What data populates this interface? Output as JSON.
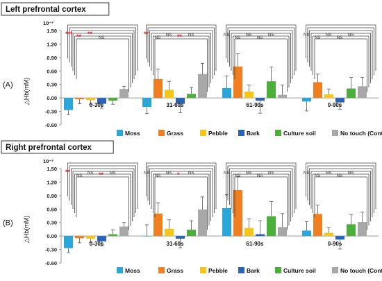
{
  "chart_data": [
    {
      "type": "bar",
      "panel_label": "(A)",
      "title": "Left prefrontal cortex",
      "ylabel": "△Hb(mM)",
      "scale_note": "10⁻³",
      "yticks": [
        "1.50",
        "1.20",
        "0.90",
        "0.60",
        "0.30",
        "0.00",
        "-0.30",
        "-0.60"
      ],
      "ylim": [
        -0.6,
        1.5
      ],
      "categories": [
        "0-30s",
        "31-60s",
        "61-90s",
        "0-90s"
      ],
      "series": [
        {
          "name": "Moss",
          "values": [
            -0.27,
            -0.2,
            0.22,
            -0.08
          ],
          "errors": [
            0.1,
            0.15,
            0.27,
            0.21
          ]
        },
        {
          "name": "Grass",
          "values": [
            -0.03,
            0.42,
            0.7,
            0.35
          ],
          "errors": [
            0.1,
            0.22,
            0.28,
            0.18
          ]
        },
        {
          "name": "Pebble",
          "values": [
            -0.05,
            0.18,
            0.14,
            0.08
          ],
          "errors": [
            0.09,
            0.19,
            0.15,
            0.12
          ]
        },
        {
          "name": "Bark",
          "values": [
            -0.13,
            -0.13,
            -0.06,
            -0.1
          ],
          "errors": [
            0.1,
            0.2,
            0.28,
            0.15
          ]
        },
        {
          "name": "Culture soil",
          "values": [
            -0.06,
            0.09,
            0.37,
            0.21
          ],
          "errors": [
            0.08,
            0.14,
            0.32,
            0.25
          ]
        },
        {
          "name": "No touch (Control)",
          "values": [
            0.2,
            0.53,
            0.07,
            0.26
          ],
          "errors": [
            0.06,
            0.24,
            0.22,
            0.2
          ]
        }
      ],
      "significance": [
        [
          "***",
          "**",
          "**",
          "NS",
          "",
          "",
          ""
        ],
        [
          "**",
          "NS",
          "NS",
          "**",
          "NS",
          "",
          ""
        ],
        [
          "NS",
          "NS",
          "NS",
          "NS",
          "NS",
          "",
          ""
        ],
        [
          "NS",
          "NS",
          "NS",
          "NS",
          "NS",
          "",
          ""
        ]
      ]
    },
    {
      "type": "bar",
      "panel_label": "(B)",
      "title": "Right prefrontal cortex",
      "ylabel": "△Hb(mM)",
      "scale_note": "10⁻³",
      "yticks": [
        "1.50",
        "1.20",
        "0.90",
        "0.60",
        "0.30",
        "0.00",
        "-0.30",
        "-0.60"
      ],
      "ylim": [
        -0.6,
        1.5
      ],
      "categories": [
        "0-30s",
        "31-60s",
        "61-90s",
        "0-90s"
      ],
      "series": [
        {
          "name": "Moss",
          "values": [
            -0.27,
            0.0,
            0.62,
            0.12
          ],
          "errors": [
            0.1,
            0.25,
            0.3,
            0.2
          ]
        },
        {
          "name": "Grass",
          "values": [
            -0.05,
            0.5,
            1.02,
            0.49
          ],
          "errors": [
            0.1,
            0.24,
            0.3,
            0.2
          ]
        },
        {
          "name": "Pebble",
          "values": [
            -0.06,
            0.16,
            0.18,
            0.07
          ],
          "errors": [
            0.08,
            0.2,
            0.2,
            0.12
          ]
        },
        {
          "name": "Bark",
          "values": [
            -0.12,
            -0.06,
            0.04,
            -0.08
          ],
          "errors": [
            0.1,
            0.2,
            0.3,
            0.21
          ]
        },
        {
          "name": "Culture soil",
          "values": [
            0.04,
            0.14,
            0.44,
            0.26
          ],
          "errors": [
            0.1,
            0.2,
            0.33,
            0.22
          ]
        },
        {
          "name": "No touch (Control)",
          "values": [
            0.21,
            0.59,
            0.2,
            0.31
          ],
          "errors": [
            0.09,
            0.28,
            0.3,
            0.22
          ]
        }
      ],
      "significance": [
        [
          "**",
          "NS",
          "NS",
          "**",
          "NS",
          "",
          ""
        ],
        [
          "NS",
          "NS",
          "NS",
          "*",
          "NS",
          "",
          ""
        ],
        [
          "NS",
          "NS",
          "NS",
          "NS",
          "NS",
          "",
          ""
        ],
        [
          "NS",
          "NS",
          "NS",
          "NS",
          "NS",
          "",
          ""
        ]
      ]
    }
  ],
  "legend": [
    "Moss",
    "Grass",
    "Pebble",
    "Bark",
    "Culture soil",
    "No touch (Control)"
  ],
  "colors": {
    "Moss": "#2aa6d8",
    "Grass": "#f07f22",
    "Pebble": "#f5c518",
    "Bark": "#2a62b5",
    "Culture soil": "#4caf3c",
    "No touch (Control)": "#a8a8a8",
    "significant_text": "#e02020",
    "ns_text": "#222222",
    "axis": "#9a9a9a"
  }
}
